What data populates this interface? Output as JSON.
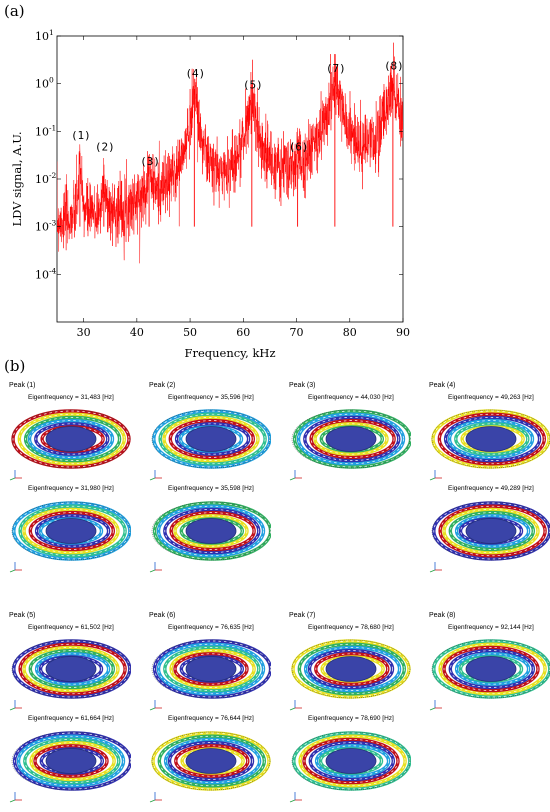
{
  "panel_a": "(a)",
  "panel_b": "(b)",
  "chart_data": {
    "type": "line",
    "xlabel": "Frequency, kHz",
    "ylabel": "LDV signal, A.U.",
    "xlim": [
      25,
      90
    ],
    "ylim": [
      1e-05,
      10
    ],
    "yscale": "log",
    "x_ticks": [
      "30",
      "40",
      "50",
      "60",
      "70",
      "80",
      "90"
    ],
    "y_ticks": [
      "10^-4",
      "10^-3",
      "10^-2",
      "10^-1",
      "10^0",
      "10^1"
    ],
    "color": "#ff0000",
    "baseline_level": 0.0005,
    "peaks": [
      {
        "label": "(1)",
        "x": 29.3,
        "y": 0.035
      },
      {
        "label": "(2)",
        "x": 33.8,
        "y": 0.02
      },
      {
        "label": "(3)",
        "x": 42.3,
        "y": 0.01
      },
      {
        "label": "(4)",
        "x": 50.8,
        "y": 0.7
      },
      {
        "label": "(5)",
        "x": 61.6,
        "y": 0.4
      },
      {
        "label": "(6)",
        "x": 70.2,
        "y": 0.02
      },
      {
        "label": "(7)",
        "x": 77.2,
        "y": 0.9
      },
      {
        "label": "(8)",
        "x": 88.1,
        "y": 1.0
      }
    ]
  },
  "modes": [
    {
      "peak": "Peak (1)",
      "eig": [
        "Eigenfrequency = 31,483 [Hz]",
        "Eigenfrequency = 31,980 [Hz]"
      ]
    },
    {
      "peak": "Peak (2)",
      "eig": [
        "Eigenfrequency = 35,596 [Hz]",
        "Eigenfrequency = 35,598 [Hz]"
      ]
    },
    {
      "peak": "Peak (3)",
      "eig": [
        "Eigenfrequency = 44,030 [Hz]"
      ]
    },
    {
      "peak": "Peak (4)",
      "eig": [
        "Eigenfrequency = 49,263 [Hz]",
        "Eigenfrequency = 49,289 [Hz]"
      ]
    },
    {
      "peak": "Peak (5)",
      "eig": [
        "Eigenfrequency = 61,502 [Hz]",
        "Eigenfrequency = 61,664 [Hz]"
      ]
    },
    {
      "peak": "Peak (6)",
      "eig": [
        "Eigenfrequency = 76,635 [Hz]",
        "Eigenfrequency = 76,644 [Hz]"
      ]
    },
    {
      "peak": "Peak (7)",
      "eig": [
        "Eigenfrequency = 78,680 [Hz]",
        "Eigenfrequency = 78,690 [Hz]"
      ]
    },
    {
      "peak": "Peak (8)",
      "eig": [
        "Eigenfrequency = 92,144 [Hz]"
      ]
    }
  ]
}
